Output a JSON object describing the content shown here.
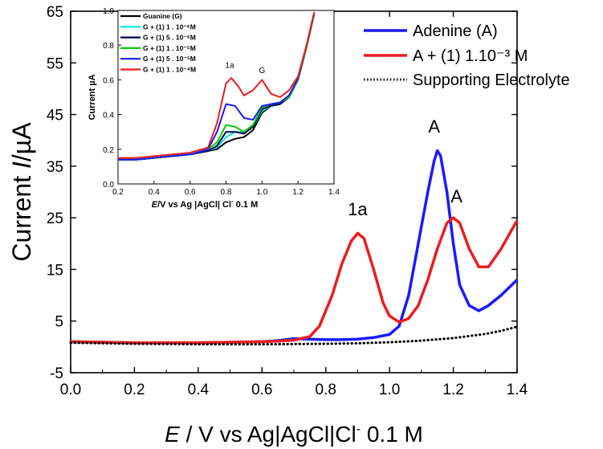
{
  "chart_data": [
    {
      "type": "line",
      "xlabel": {
        "italic": "E",
        "rest": " / V vs Ag|AgCl|Cl",
        "sup": "-",
        "tail": " 0.1 M"
      },
      "ylabel": {
        "plain": "Current ",
        "italic": "I",
        "unit": "/µA"
      },
      "xlim": [
        0.0,
        1.4
      ],
      "ylim": [
        -5,
        65
      ],
      "xticks": [
        0.0,
        0.2,
        0.4,
        0.6,
        0.8,
        1.0,
        1.2,
        1.4
      ],
      "xtick_labels": [
        "0.0",
        "0.2",
        "0.4",
        "0.6",
        "0.8",
        "1.0",
        "1.2",
        "1.4"
      ],
      "yticks": [
        -5,
        5,
        15,
        25,
        35,
        45,
        55,
        65
      ],
      "ytick_labels": [
        "-5",
        "5",
        "15",
        "25",
        "35",
        "45",
        "55",
        "65"
      ],
      "legend_position": "top-right",
      "series": [
        {
          "name": "Adenine (A)",
          "color": "#1a1aff",
          "style": "solid",
          "x": [
            0.0,
            0.2,
            0.4,
            0.6,
            0.65,
            0.7,
            0.75,
            0.8,
            0.85,
            0.9,
            0.95,
            1.0,
            1.03,
            1.06,
            1.09,
            1.12,
            1.14,
            1.15,
            1.16,
            1.18,
            1.2,
            1.22,
            1.25,
            1.28,
            1.31,
            1.35,
            1.4
          ],
          "y": [
            1.0,
            0.8,
            0.8,
            1.0,
            1.2,
            1.6,
            1.5,
            1.4,
            1.4,
            1.5,
            1.8,
            2.4,
            4.0,
            10.0,
            20.0,
            30.0,
            36.0,
            38.0,
            37.0,
            30.0,
            20.0,
            12.0,
            8.0,
            7.0,
            8.0,
            10.0,
            13.0
          ]
        },
        {
          "name": "A + (1) 1.10⁻³ M",
          "color": "#ee1c1c",
          "style": "solid",
          "x": [
            0.0,
            0.2,
            0.4,
            0.6,
            0.65,
            0.7,
            0.75,
            0.78,
            0.82,
            0.85,
            0.88,
            0.9,
            0.92,
            0.95,
            0.98,
            1.0,
            1.03,
            1.06,
            1.09,
            1.12,
            1.15,
            1.18,
            1.2,
            1.22,
            1.25,
            1.28,
            1.31,
            1.35,
            1.4
          ],
          "y": [
            1.0,
            0.8,
            0.8,
            1.0,
            1.1,
            1.3,
            2.0,
            4.0,
            10.0,
            16.0,
            20.5,
            22.0,
            21.0,
            15.0,
            8.5,
            6.0,
            4.8,
            5.5,
            8.0,
            13.0,
            19.0,
            24.0,
            25.0,
            24.0,
            19.0,
            15.5,
            15.5,
            19.0,
            24.5
          ]
        },
        {
          "name": "Supporting Electrolyte",
          "color": "#000000",
          "style": "dotted",
          "x": [
            0.0,
            0.2,
            0.4,
            0.6,
            0.8,
            0.9,
            1.0,
            1.1,
            1.2,
            1.3,
            1.35,
            1.4
          ],
          "y": [
            0.8,
            0.6,
            0.5,
            0.5,
            0.6,
            0.7,
            0.9,
            1.2,
            1.7,
            2.5,
            3.1,
            3.9
          ]
        }
      ],
      "annotations": [
        {
          "text": "1a",
          "x": 0.9,
          "y": 25.5
        },
        {
          "text": "A",
          "x": 1.14,
          "y": 41.5
        },
        {
          "text": "A",
          "x": 1.21,
          "y": 28.0
        }
      ]
    },
    {
      "type": "line",
      "xlabel": {
        "italic": "E",
        "rest": "/V vs Ag |AgCl| Cl",
        "sup": "-",
        "tail": " 0.1  M"
      },
      "ylabel": "Current µA",
      "xlim": [
        0.2,
        1.4
      ],
      "ylim": [
        0.0,
        1.0
      ],
      "xticks": [
        0.2,
        0.4,
        0.6,
        0.8,
        1.0,
        1.2,
        1.4
      ],
      "xtick_labels": [
        "0.2",
        "0.4",
        "0.6",
        "0.8",
        "1.0",
        "1.2",
        "1.4"
      ],
      "yticks": [
        0.0,
        0.2,
        0.4,
        0.6,
        0.8,
        1.0
      ],
      "ytick_labels": [
        "0.0",
        "0.2",
        "0.4",
        "0.6",
        "0.8",
        "1.0"
      ],
      "legend_position": "top-left",
      "series": [
        {
          "name": "Guanine (G)",
          "color": "#000000",
          "x": [
            0.2,
            0.3,
            0.4,
            0.5,
            0.6,
            0.7,
            0.75,
            0.8,
            0.85,
            0.9,
            0.95,
            1.0,
            1.05,
            1.1,
            1.15,
            1.2,
            1.25,
            1.29
          ],
          "y": [
            0.14,
            0.14,
            0.15,
            0.16,
            0.17,
            0.19,
            0.2,
            0.24,
            0.26,
            0.27,
            0.31,
            0.41,
            0.45,
            0.46,
            0.5,
            0.6,
            0.8,
            0.98
          ]
        },
        {
          "name": "G + (1) 1 . 10⁻⁶M",
          "color": "#00e5e5",
          "x": [
            0.2,
            0.3,
            0.4,
            0.5,
            0.6,
            0.7,
            0.75,
            0.8,
            0.85,
            0.9,
            0.95,
            1.0,
            1.05,
            1.1,
            1.15,
            1.2,
            1.25,
            1.29
          ],
          "y": [
            0.14,
            0.14,
            0.15,
            0.16,
            0.17,
            0.19,
            0.21,
            0.27,
            0.3,
            0.3,
            0.33,
            0.42,
            0.45,
            0.46,
            0.5,
            0.6,
            0.8,
            0.98
          ]
        },
        {
          "name": "G + (1) 5 . 10⁻⁶M",
          "color": "#00004d",
          "x": [
            0.2,
            0.3,
            0.4,
            0.5,
            0.6,
            0.7,
            0.75,
            0.8,
            0.85,
            0.9,
            0.95,
            1.0,
            1.05,
            1.1,
            1.15,
            1.2,
            1.25,
            1.29
          ],
          "y": [
            0.14,
            0.14,
            0.15,
            0.16,
            0.17,
            0.19,
            0.22,
            0.3,
            0.3,
            0.29,
            0.33,
            0.43,
            0.45,
            0.46,
            0.5,
            0.6,
            0.8,
            0.98
          ]
        },
        {
          "name": "G + (1) 1 . 10⁻⁵M",
          "color": "#00cc00",
          "x": [
            0.2,
            0.3,
            0.4,
            0.5,
            0.6,
            0.7,
            0.75,
            0.8,
            0.85,
            0.9,
            0.95,
            1.0,
            1.05,
            1.1,
            1.15,
            1.2,
            1.25,
            1.29
          ],
          "y": [
            0.14,
            0.14,
            0.15,
            0.16,
            0.17,
            0.2,
            0.24,
            0.34,
            0.33,
            0.3,
            0.34,
            0.44,
            0.46,
            0.47,
            0.5,
            0.6,
            0.8,
            0.98
          ]
        },
        {
          "name": "G + (1) 5 . 10⁻⁵M",
          "color": "#1a1aff",
          "x": [
            0.2,
            0.3,
            0.4,
            0.5,
            0.6,
            0.7,
            0.75,
            0.8,
            0.85,
            0.9,
            0.95,
            1.0,
            1.05,
            1.1,
            1.15,
            1.2,
            1.25,
            1.29
          ],
          "y": [
            0.14,
            0.14,
            0.15,
            0.16,
            0.17,
            0.2,
            0.3,
            0.46,
            0.45,
            0.38,
            0.37,
            0.45,
            0.46,
            0.47,
            0.51,
            0.61,
            0.81,
            0.99
          ]
        },
        {
          "name": "G + (1) 1 . 10⁻⁴M",
          "color": "#ee1c1c",
          "x": [
            0.2,
            0.3,
            0.4,
            0.5,
            0.6,
            0.7,
            0.75,
            0.8,
            0.83,
            0.87,
            0.9,
            0.95,
            1.0,
            1.05,
            1.1,
            1.15,
            1.2,
            1.25,
            1.29
          ],
          "y": [
            0.15,
            0.15,
            0.16,
            0.17,
            0.18,
            0.21,
            0.35,
            0.58,
            0.61,
            0.56,
            0.51,
            0.54,
            0.6,
            0.52,
            0.5,
            0.54,
            0.62,
            0.81,
            0.99
          ]
        }
      ],
      "annotations": [
        {
          "text": "1a",
          "x": 0.82,
          "y": 0.67
        },
        {
          "text": "G",
          "x": 1.0,
          "y": 0.64
        }
      ]
    }
  ]
}
